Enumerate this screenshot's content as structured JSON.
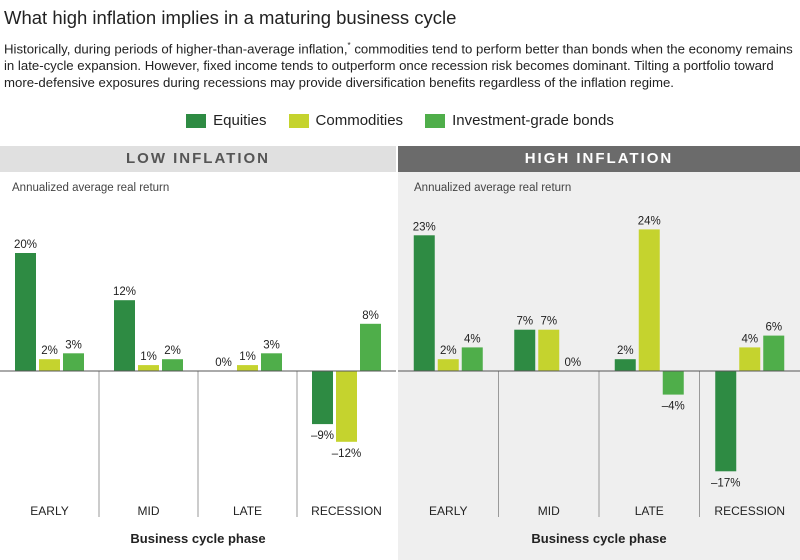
{
  "title": "What high inflation implies in a maturing business cycle",
  "subtitle_part1": "Historically, during periods of higher-than-average inflation,",
  "subtitle_mark": "*",
  "subtitle_part2": " commodities tend to perform better than bonds when the economy remains in late-cycle expansion. However, fixed income tends to outperform once recession risk becomes dominant. Tilting a portfolio toward more-defensive exposures during recessions may provide diversification benefits regardless of the inflation regime.",
  "legend": [
    {
      "label": "Equities",
      "color": "#2e8b43"
    },
    {
      "label": "Commodities",
      "color": "#c5d32e"
    },
    {
      "label": "Investment-grade bonds",
      "color": "#4fae4a"
    }
  ],
  "chart_data": [
    {
      "type": "bar",
      "title": "LOW INFLATION",
      "ylabel": "Annualized average real return",
      "xlabel": "Business cycle phase",
      "categories": [
        "EARLY",
        "MID",
        "LATE",
        "RECESSION"
      ],
      "series": [
        {
          "name": "Equities",
          "values": [
            20,
            12,
            0,
            -9
          ],
          "labels": [
            "20%",
            "12%",
            "0%",
            "–9%"
          ]
        },
        {
          "name": "Commodities",
          "values": [
            2,
            1,
            1,
            -12
          ],
          "labels": [
            "2%",
            "1%",
            "1%",
            "–12%"
          ]
        },
        {
          "name": "Investment-grade bonds",
          "values": [
            3,
            2,
            3,
            8
          ],
          "labels": [
            "3%",
            "2%",
            "3%",
            "8%"
          ]
        }
      ],
      "ylim": [
        -19,
        26
      ]
    },
    {
      "type": "bar",
      "title": "HIGH INFLATION",
      "ylabel": "Annualized average real return",
      "xlabel": "Business cycle phase",
      "categories": [
        "EARLY",
        "MID",
        "LATE",
        "RECESSION"
      ],
      "series": [
        {
          "name": "Equities",
          "values": [
            23,
            7,
            2,
            -17
          ],
          "labels": [
            "23%",
            "7%",
            "2%",
            "–17%"
          ]
        },
        {
          "name": "Commodities",
          "values": [
            2,
            7,
            24,
            4
          ],
          "labels": [
            "2%",
            "7%",
            "24%",
            "4%"
          ]
        },
        {
          "name": "Investment-grade bonds",
          "values": [
            4,
            0,
            -4,
            6
          ],
          "labels": [
            "4%",
            "0%",
            "–4%",
            "6%"
          ]
        }
      ],
      "ylim": [
        -19,
        26
      ]
    }
  ]
}
